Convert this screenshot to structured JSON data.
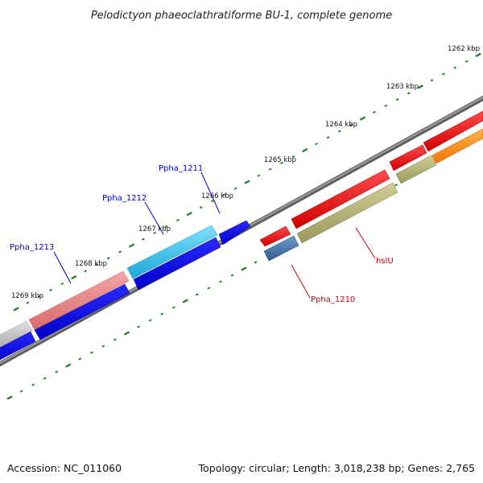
{
  "title": "Pelodictyon phaeoclathratiforme BU-1, complete genome",
  "footer": {
    "accession": "Accession: NC_011060",
    "summary": "Topology: circular; Length: 3,018,238 bp; Genes: 2,765"
  },
  "ticks": [
    {
      "label": "1262 kbp"
    },
    {
      "label": "1263 kbp"
    },
    {
      "label": "1264 kbp"
    },
    {
      "label": "1265 kbp"
    },
    {
      "label": "1266 kbp"
    },
    {
      "label": "1267 kbp"
    },
    {
      "label": "1268 kbp"
    },
    {
      "label": "1269 kbp"
    }
  ],
  "genes": [
    {
      "name": "Ppha_1211"
    },
    {
      "name": "Ppha_1212"
    },
    {
      "name": "Ppha_1213"
    },
    {
      "name": "Ppha_1210"
    },
    {
      "name": "hslU"
    }
  ],
  "colors": {
    "backbone": "#7a7a7a",
    "tick": "#1a7a1a",
    "cds_blue": "#0000e0",
    "gene_cyan": "#22b7e8",
    "gene_pink": "#e07a7a",
    "gene_gray": "#bdbdbd",
    "gene_red": "#e60000",
    "gene_olive": "#b0ad72",
    "gene_orange": "#ff8800",
    "gene_steel": "#3d6fa6",
    "label_blue": "#0000cc",
    "label_red": "#cc0000"
  }
}
